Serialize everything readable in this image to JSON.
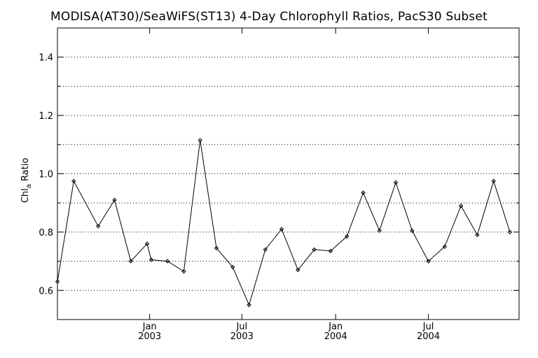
{
  "chart_data": {
    "type": "line",
    "title": "MODISA(AT30)/SeaWiFS(ST13) 4-Day Chlorophyll Ratios, PacS30 Subset",
    "xlabel": "",
    "ylabel": "Chl_a Ratio",
    "ylim": [
      0.5,
      1.5
    ],
    "y_ticks": [
      0.6,
      0.8,
      1.0,
      1.2,
      1.4
    ],
    "y_tick_labels": [
      "0.6",
      "0.8",
      "1.0",
      "1.2",
      "1.4"
    ],
    "grid_y": [
      0.6,
      0.7,
      0.8,
      0.9,
      1.0,
      1.1,
      1.2,
      1.3,
      1.4
    ],
    "grid": true,
    "xlim": [
      "2002-07-04",
      "2004-12-26"
    ],
    "x_ticks": [
      {
        "date": "2003-01-01",
        "label": "Jan",
        "year": "2003"
      },
      {
        "date": "2003-07-01",
        "label": "Jul",
        "year": "2003"
      },
      {
        "date": "2004-01-01",
        "label": "Jan",
        "year": "2004"
      },
      {
        "date": "2004-07-01",
        "label": "Jul",
        "year": "2004"
      }
    ],
    "series": [
      {
        "line_color": "#000000",
        "x": [
          "2002-07-04",
          "2002-08-05",
          "2002-09-22",
          "2002-10-24",
          "2002-11-25",
          "2002-12-27",
          "2003-01-04",
          "2003-02-05",
          "2003-03-09",
          "2003-04-10",
          "2003-05-12",
          "2003-06-13",
          "2003-07-15",
          "2003-08-16",
          "2003-09-17",
          "2003-10-19",
          "2003-11-20",
          "2003-12-22",
          "2004-01-23",
          "2004-02-24",
          "2004-03-27",
          "2004-04-28",
          "2004-05-30",
          "2004-07-01",
          "2004-08-02",
          "2004-09-03",
          "2004-10-05",
          "2004-11-06",
          "2004-12-08"
        ],
        "values": [
          0.63,
          0.975,
          0.82,
          0.91,
          0.7,
          0.76,
          0.705,
          0.7,
          0.665,
          1.115,
          0.745,
          0.68,
          0.55,
          0.74,
          0.81,
          0.67,
          0.74,
          0.735,
          0.785,
          0.935,
          0.805,
          0.97,
          0.805,
          0.7,
          0.75,
          0.89,
          0.79,
          0.975,
          0.8
        ]
      }
    ]
  }
}
